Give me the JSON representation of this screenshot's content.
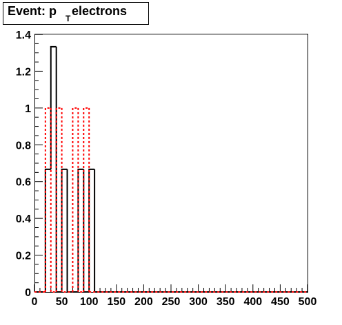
{
  "chart_data": {
    "type": "histogram",
    "title": {
      "prefix": "Event: p",
      "subscript": "T",
      "suffix": " electrons"
    },
    "xlabel": "",
    "ylabel": "",
    "xlim": [
      0,
      500
    ],
    "ylim": [
      0,
      1.4
    ],
    "bin_width": 10,
    "x_ticks": [
      0,
      50,
      100,
      150,
      200,
      250,
      300,
      350,
      400,
      450,
      500
    ],
    "y_ticks": [
      0,
      0.2,
      0.4,
      0.6,
      0.8,
      1,
      1.2,
      1.4
    ],
    "x_minor_step": 10,
    "y_minor_step": 0.05,
    "grid": false,
    "legend": "none",
    "series": [
      {
        "color": "#000000",
        "style": "solid",
        "bins": [
          {
            "x0": 20,
            "x1": 30,
            "y": 0.667
          },
          {
            "x0": 30,
            "x1": 40,
            "y": 1.333
          },
          {
            "x0": 40,
            "x1": 50,
            "y": 0
          },
          {
            "x0": 50,
            "x1": 60,
            "y": 0.667
          },
          {
            "x0": 60,
            "x1": 80,
            "y": 0
          },
          {
            "x0": 80,
            "x1": 90,
            "y": 0.667
          },
          {
            "x0": 90,
            "x1": 100,
            "y": 0
          },
          {
            "x0": 100,
            "x1": 110,
            "y": 0.667
          }
        ]
      },
      {
        "color": "#ff0000",
        "style": "dotted",
        "bins": [
          {
            "x0": 20,
            "x1": 30,
            "y": 1
          },
          {
            "x0": 30,
            "x1": 40,
            "y": 0
          },
          {
            "x0": 40,
            "x1": 50,
            "y": 1
          },
          {
            "x0": 50,
            "x1": 70,
            "y": 0
          },
          {
            "x0": 70,
            "x1": 80,
            "y": 1
          },
          {
            "x0": 80,
            "x1": 90,
            "y": 0
          },
          {
            "x0": 90,
            "x1": 100,
            "y": 1
          }
        ]
      }
    ]
  }
}
